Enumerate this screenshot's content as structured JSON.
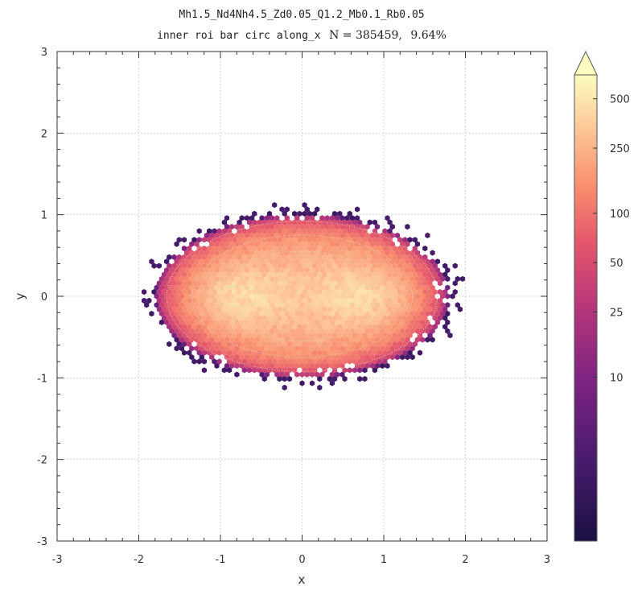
{
  "chart_data": {
    "type": "heatmap",
    "subtype": "hexbin-density",
    "title": "Mh1.5_Nd4Nh4.5_Zd0.05_Q1.2_Mb0.1_Rb0.05",
    "subtitle": {
      "text": "inner roi bar circ along_x",
      "n_label": "N = 385459,",
      "pct_label": "9.64%"
    },
    "xlabel": "x",
    "ylabel": "y",
    "xlim": [
      -3,
      3
    ],
    "ylim": [
      -3,
      3
    ],
    "xticks": [
      -3,
      -2,
      -1,
      0,
      1,
      2,
      3
    ],
    "yticks": [
      -3,
      -2,
      -1,
      0,
      1,
      2,
      3
    ],
    "grid": true,
    "colorscale": "magma-like, log",
    "colorbar": {
      "ticks": [
        10,
        25,
        50,
        100,
        250,
        500
      ],
      "tick_labels": [
        "10",
        "25",
        "50",
        "100",
        "250",
        "500"
      ],
      "min": 1,
      "max": 700,
      "extend": "max"
    },
    "distribution": {
      "center": [
        0,
        0
      ],
      "half_width_x": 1.8,
      "half_height_y": 1.0,
      "peaks": [
        [
          -0.8,
          0
        ],
        [
          0.8,
          0
        ]
      ],
      "peak_value": 500
    },
    "colors": [
      "#1a1042",
      "#4a1c6e",
      "#7c2382",
      "#b5367a",
      "#e4566b",
      "#f98e6e",
      "#fdc596",
      "#fcfdbf"
    ]
  }
}
